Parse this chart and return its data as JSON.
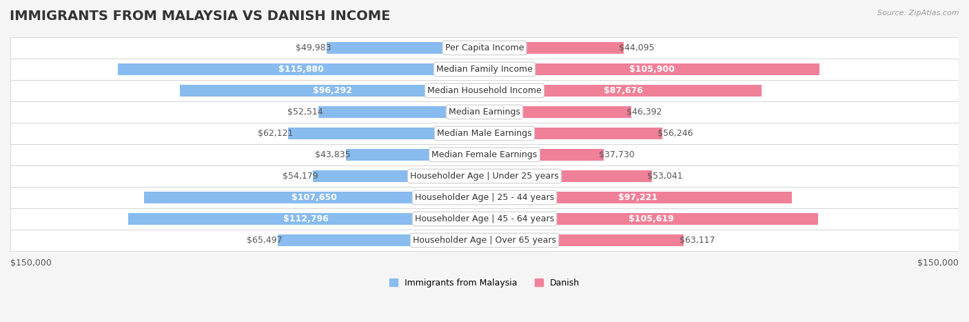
{
  "title": "IMMIGRANTS FROM MALAYSIA VS DANISH INCOME",
  "source": "Source: ZipAtlas.com",
  "categories": [
    "Per Capita Income",
    "Median Family Income",
    "Median Household Income",
    "Median Earnings",
    "Median Male Earnings",
    "Median Female Earnings",
    "Householder Age | Under 25 years",
    "Householder Age | 25 - 44 years",
    "Householder Age | 45 - 64 years",
    "Householder Age | Over 65 years"
  ],
  "malaysia_values": [
    49983,
    115880,
    96292,
    52514,
    62121,
    43835,
    54179,
    107650,
    112796,
    65497
  ],
  "danish_values": [
    44095,
    105900,
    87676,
    46392,
    56246,
    37730,
    53041,
    97221,
    105619,
    63117
  ],
  "malaysia_labels": [
    "$49,983",
    "$115,880",
    "$96,292",
    "$52,514",
    "$62,121",
    "$43,835",
    "$54,179",
    "$107,650",
    "$112,796",
    "$65,497"
  ],
  "danish_labels": [
    "$44,095",
    "$105,900",
    "$87,676",
    "$46,392",
    "$56,246",
    "$37,730",
    "$53,041",
    "$97,221",
    "$105,619",
    "$63,117"
  ],
  "malaysia_color": "#88BBEE",
  "danish_color": "#F08098",
  "malaysia_color_dark": "#6699CC",
  "danish_color_dark": "#E06080",
  "malaysia_label_inside": [
    false,
    true,
    true,
    false,
    false,
    false,
    false,
    true,
    true,
    false
  ],
  "danish_label_inside": [
    false,
    true,
    true,
    false,
    false,
    false,
    false,
    true,
    true,
    false
  ],
  "axis_max": 150000,
  "axis_label_left": "$150,000",
  "axis_label_right": "$150,000",
  "legend_malaysia": "Immigrants from Malaysia",
  "legend_danish": "Danish",
  "bar_height": 0.55,
  "background_color": "#f5f5f5",
  "row_bg_color": "#ffffff",
  "title_fontsize": 14,
  "label_fontsize": 9,
  "category_fontsize": 9
}
